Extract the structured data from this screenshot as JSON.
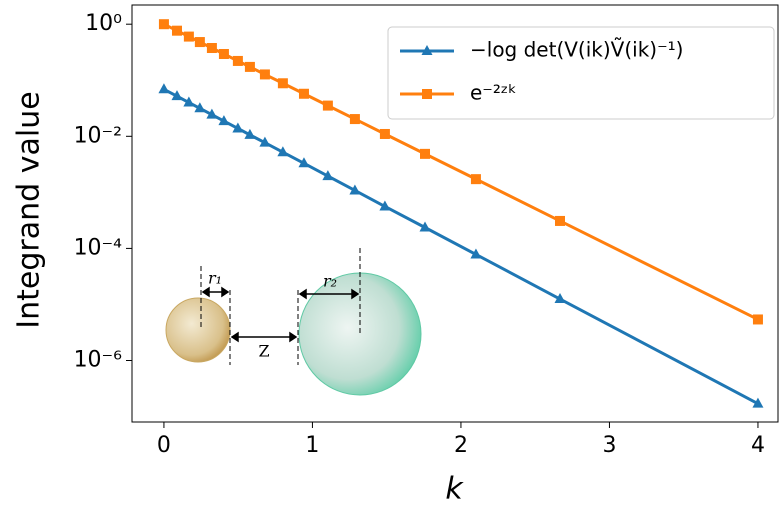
{
  "chart_data": {
    "type": "line",
    "xlabel": "k",
    "ylabel": "Integrand value",
    "x": [
      0,
      0.088,
      0.168,
      0.242,
      0.323,
      0.404,
      0.498,
      0.579,
      0.68,
      0.801,
      0.943,
      1.104,
      1.286,
      1.488,
      1.758,
      2.101,
      2.667,
      4.0
    ],
    "series": [
      {
        "name": "−log det(V(ik)Ṽ(ik)⁻¹)",
        "color": "#1f77b4",
        "marker": "triangle",
        "values": [
          0.069,
          0.052,
          0.04,
          0.0316,
          0.0243,
          0.0187,
          0.0138,
          0.0106,
          0.0077,
          0.0052,
          0.0033,
          0.00195,
          0.00108,
          0.00056,
          0.000236,
          7.8e-05,
          1.25e-05,
          1.7e-07
        ]
      },
      {
        "name": "e⁻²ᶻᵏ",
        "color": "#ff7f0e",
        "marker": "square",
        "values": [
          1,
          0.766,
          0.601,
          0.48,
          0.376,
          0.294,
          0.221,
          0.173,
          0.127,
          0.0883,
          0.0574,
          0.0353,
          0.0203,
          0.011,
          0.00486,
          0.00172,
          0.000309,
          5.4e-06
        ]
      }
    ],
    "xlim": [
      -0.215,
      4.135
    ],
    "xticks": [
      0,
      1,
      2,
      3,
      4
    ],
    "ylim": [
      8e-08,
      2.2
    ],
    "yscale": "log",
    "yticks": [
      {
        "value": 1,
        "label": "10⁰"
      },
      {
        "value": 0.01,
        "label": "10⁻²"
      },
      {
        "value": 0.0001,
        "label": "10⁻⁴"
      },
      {
        "value": 1e-06,
        "label": "10⁻⁶"
      }
    ],
    "grid": false,
    "legend": "upper right",
    "annotations": [
      "r₁",
      "Z",
      "r₂"
    ]
  }
}
